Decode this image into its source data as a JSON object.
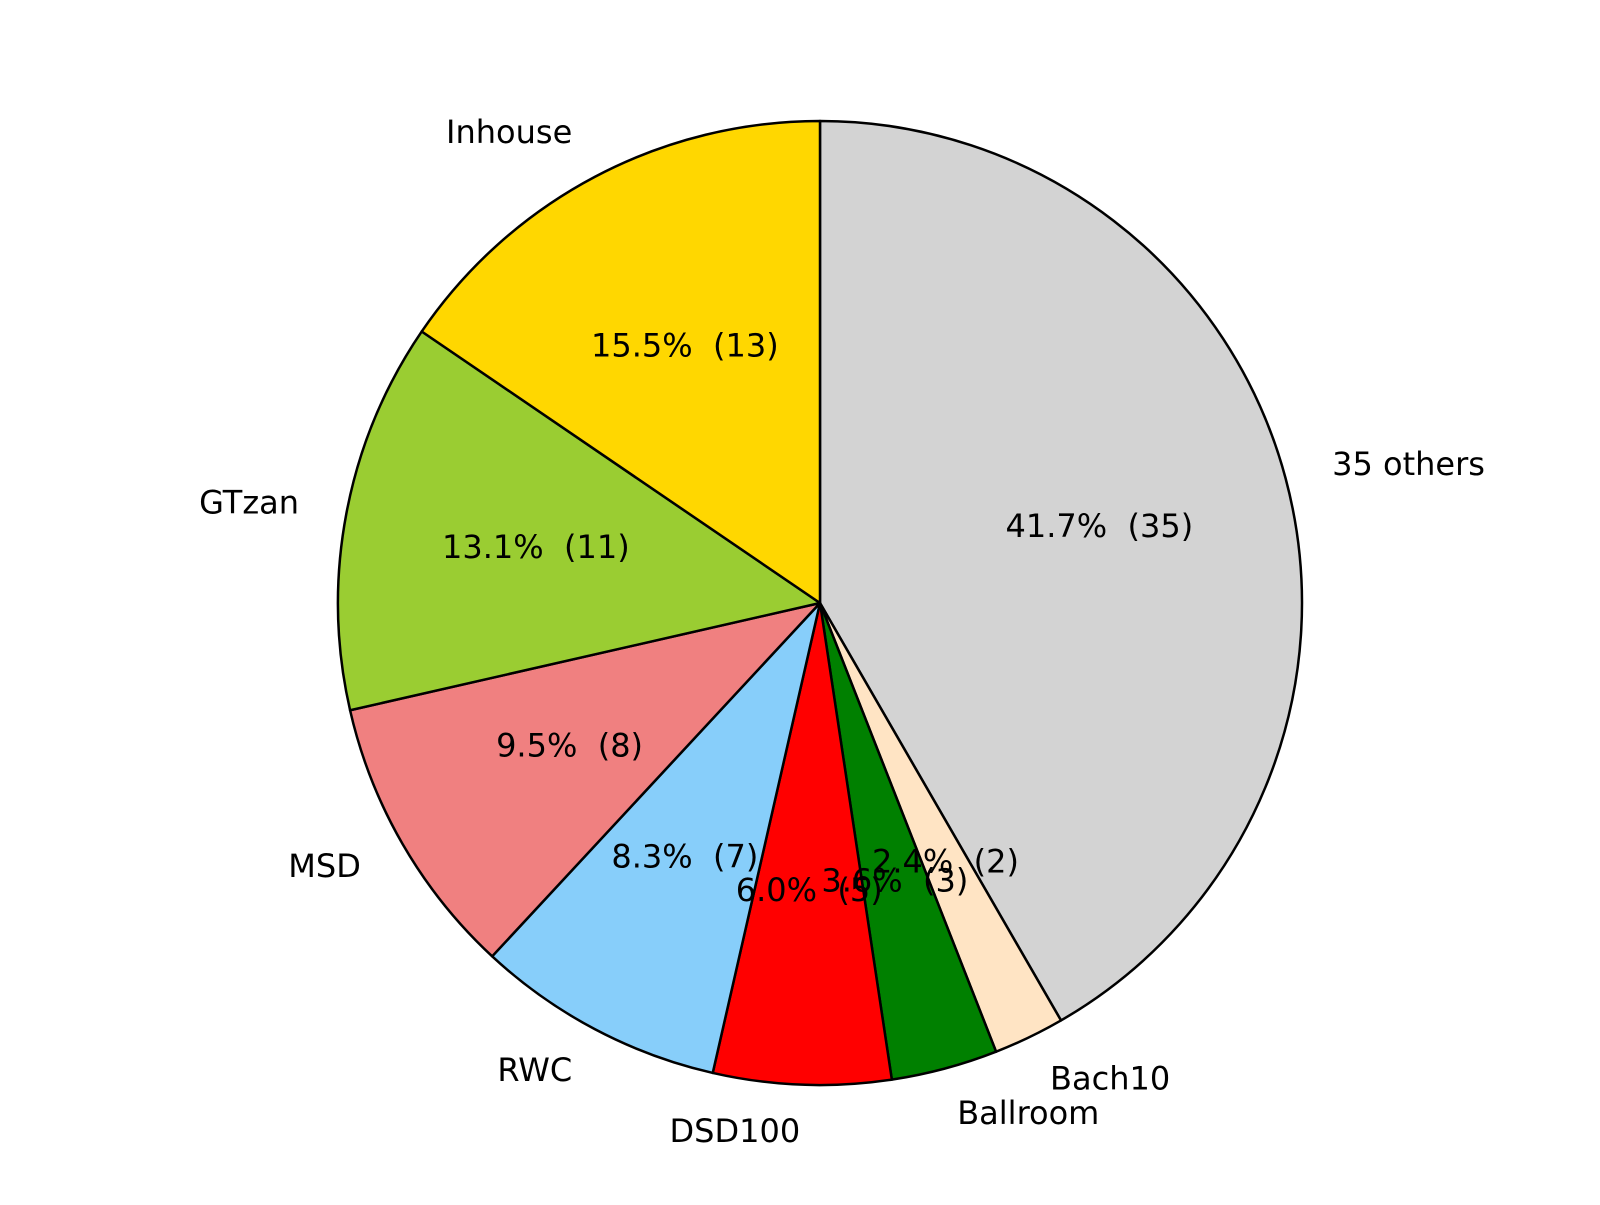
{
  "chart_data": {
    "type": "pie",
    "title": "",
    "start_angle_deg": 90,
    "direction": "clockwise",
    "slices": [
      {
        "name": "35 others",
        "value": 35,
        "percent_label": "41.7%  (35)",
        "color": "#d3d3d3"
      },
      {
        "name": "Bach10",
        "value": 2,
        "percent_label": "2.4%  (2)",
        "color": "#ffe4c4"
      },
      {
        "name": "Ballroom",
        "value": 3,
        "percent_label": "3.6%  (3)",
        "color": "#008000"
      },
      {
        "name": "DSD100",
        "value": 5,
        "percent_label": "6.0%  (5)",
        "color": "#ff0000"
      },
      {
        "name": "RWC",
        "value": 7,
        "percent_label": "8.3%  (7)",
        "color": "#87cefa"
      },
      {
        "name": "MSD",
        "value": 8,
        "percent_label": "9.5%  (8)",
        "color": "#f08080"
      },
      {
        "name": "GTzan",
        "value": 11,
        "percent_label": "13.1%  (11)",
        "color": "#9acd32"
      },
      {
        "name": "Inhouse",
        "value": 13,
        "percent_label": "15.5%  (13)",
        "color": "#ffd700"
      }
    ],
    "edge_color": "#000000"
  }
}
